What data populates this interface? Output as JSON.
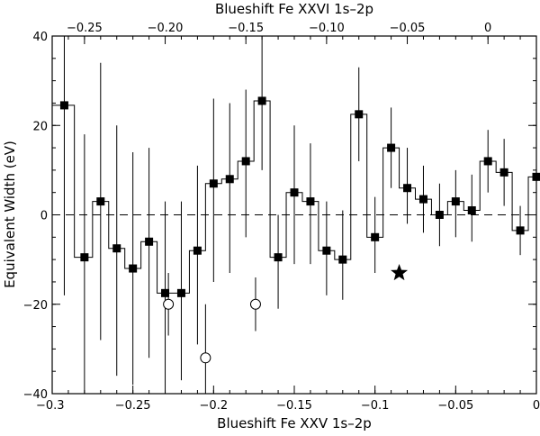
{
  "chart_data": {
    "type": "scatter",
    "xlabel": "Blueshift Fe XXV 1s–2p",
    "ylabel": "Equivalent Width (eV)",
    "x2label": "Blueshift Fe XXVI 1s–2p",
    "xlim": [
      -0.3,
      0
    ],
    "ylim": [
      -40,
      40
    ],
    "x2lim": [
      -0.27,
      0.03
    ],
    "xticks": [
      -0.3,
      -0.25,
      -0.2,
      -0.15,
      -0.1,
      -0.05,
      0
    ],
    "xtick_labels": [
      "−0.3",
      "−0.25",
      "−0.2",
      "−0.15",
      "−0.1",
      "−0.05",
      "0"
    ],
    "x2ticks": [
      -0.25,
      -0.2,
      -0.15,
      -0.1,
      -0.05,
      0
    ],
    "x2tick_labels": [
      "−0.25",
      "−0.20",
      "−0.15",
      "−0.10",
      "−0.05",
      "0"
    ],
    "yticks": [
      -40,
      -20,
      0,
      20,
      40
    ],
    "ytick_labels": [
      "−40",
      "−20",
      "0",
      "20",
      "40"
    ],
    "grid": false,
    "reference_line": {
      "y": 0,
      "style": "dashed"
    },
    "series": [
      {
        "marker": "filled-square",
        "step_histogram": true,
        "bin_width": 0.01,
        "points": [
          {
            "x": -0.2925,
            "y": 24.5,
            "ylo": -18,
            "yhi": 40
          },
          {
            "x": -0.28,
            "y": -9.5,
            "ylo": -40,
            "yhi": 18
          },
          {
            "x": -0.27,
            "y": 3,
            "ylo": -28,
            "yhi": 34
          },
          {
            "x": -0.26,
            "y": -7.5,
            "ylo": -36,
            "yhi": 20
          },
          {
            "x": -0.25,
            "y": -12,
            "ylo": -38,
            "yhi": 14
          },
          {
            "x": -0.24,
            "y": -6,
            "ylo": -32,
            "yhi": 15
          },
          {
            "x": -0.23,
            "y": -17.5,
            "ylo": -40,
            "yhi": 3
          },
          {
            "x": -0.22,
            "y": -17.5,
            "ylo": -37,
            "yhi": 3
          },
          {
            "x": -0.21,
            "y": -8,
            "ylo": -29,
            "yhi": 11
          },
          {
            "x": -0.2,
            "y": 7,
            "ylo": -15,
            "yhi": 26
          },
          {
            "x": -0.19,
            "y": 8,
            "ylo": -13,
            "yhi": 25
          },
          {
            "x": -0.18,
            "y": 12,
            "ylo": -5,
            "yhi": 28
          },
          {
            "x": -0.17,
            "y": 25.5,
            "ylo": 10,
            "yhi": 40
          },
          {
            "x": -0.16,
            "y": -9.5,
            "ylo": -21,
            "yhi": 0
          },
          {
            "x": -0.15,
            "y": 5,
            "ylo": -11,
            "yhi": 20
          },
          {
            "x": -0.14,
            "y": 3,
            "ylo": -11,
            "yhi": 16
          },
          {
            "x": -0.13,
            "y": -8,
            "ylo": -18,
            "yhi": 3
          },
          {
            "x": -0.12,
            "y": -10,
            "ylo": -19,
            "yhi": 1
          },
          {
            "x": -0.11,
            "y": 22.5,
            "ylo": 12,
            "yhi": 33
          },
          {
            "x": -0.1,
            "y": -5,
            "ylo": -13,
            "yhi": 4
          },
          {
            "x": -0.09,
            "y": 15,
            "ylo": 6,
            "yhi": 24
          },
          {
            "x": -0.08,
            "y": 6,
            "ylo": -2,
            "yhi": 15
          },
          {
            "x": -0.07,
            "y": 3.5,
            "ylo": -4,
            "yhi": 11
          },
          {
            "x": -0.06,
            "y": 0,
            "ylo": -7,
            "yhi": 7
          },
          {
            "x": -0.05,
            "y": 3,
            "ylo": -5,
            "yhi": 10
          },
          {
            "x": -0.04,
            "y": 1,
            "ylo": -6,
            "yhi": 9
          },
          {
            "x": -0.03,
            "y": 12,
            "ylo": 5,
            "yhi": 19
          },
          {
            "x": -0.02,
            "y": 9.5,
            "ylo": 2,
            "yhi": 17
          },
          {
            "x": -0.01,
            "y": -3.5,
            "ylo": -9,
            "yhi": 2
          },
          {
            "x": 0,
            "y": 8.5,
            "ylo": 2,
            "yhi": 15
          }
        ]
      },
      {
        "marker": "open-circle",
        "points": [
          {
            "x": -0.228,
            "y": -20,
            "ylo": -27,
            "yhi": -13
          },
          {
            "x": -0.205,
            "y": -32,
            "ylo": -40,
            "yhi": -20
          },
          {
            "x": -0.174,
            "y": -20,
            "ylo": -26,
            "yhi": -14
          }
        ]
      },
      {
        "marker": "filled-star",
        "points": [
          {
            "x": -0.085,
            "y": -13
          }
        ]
      }
    ]
  }
}
